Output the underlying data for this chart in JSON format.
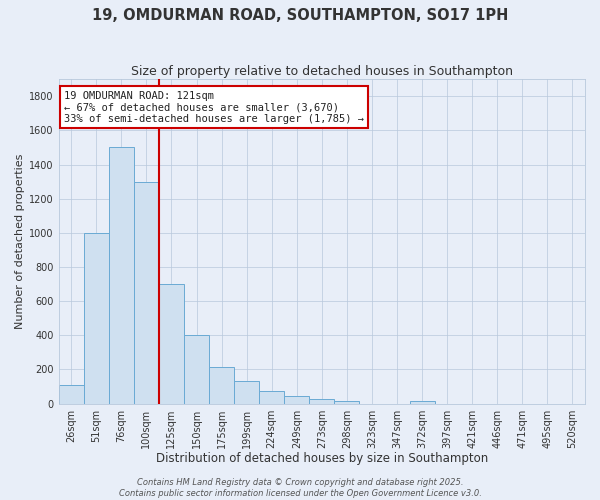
{
  "title": "19, OMDURMAN ROAD, SOUTHAMPTON, SO17 1PH",
  "subtitle": "Size of property relative to detached houses in Southampton",
  "xlabel": "Distribution of detached houses by size in Southampton",
  "ylabel": "Number of detached properties",
  "categories": [
    "26sqm",
    "51sqm",
    "76sqm",
    "100sqm",
    "125sqm",
    "150sqm",
    "175sqm",
    "199sqm",
    "224sqm",
    "249sqm",
    "273sqm",
    "298sqm",
    "323sqm",
    "347sqm",
    "372sqm",
    "397sqm",
    "421sqm",
    "446sqm",
    "471sqm",
    "495sqm",
    "520sqm"
  ],
  "values": [
    110,
    1000,
    1500,
    1300,
    700,
    400,
    215,
    135,
    75,
    45,
    25,
    15,
    0,
    0,
    15,
    0,
    0,
    0,
    0,
    0,
    0
  ],
  "bar_color": "#cfe0f0",
  "bar_edge_color": "#6aaad4",
  "red_line_index": 4,
  "annotation_title": "19 OMDURMAN ROAD: 121sqm",
  "annotation_line1": "← 67% of detached houses are smaller (3,670)",
  "annotation_line2": "33% of semi-detached houses are larger (1,785) →",
  "red_line_color": "#cc0000",
  "ylim": [
    0,
    1900
  ],
  "yticks": [
    0,
    200,
    400,
    600,
    800,
    1000,
    1200,
    1400,
    1600,
    1800
  ],
  "background_color": "#e8eef8",
  "plot_background": "#e8eef8",
  "grid_color": "#b8c8dc",
  "footer1": "Contains HM Land Registry data © Crown copyright and database right 2025.",
  "footer2": "Contains public sector information licensed under the Open Government Licence v3.0.",
  "title_fontsize": 10.5,
  "subtitle_fontsize": 9,
  "xlabel_fontsize": 8.5,
  "ylabel_fontsize": 8,
  "tick_fontsize": 7,
  "annot_fontsize": 7.5,
  "footer_fontsize": 6
}
